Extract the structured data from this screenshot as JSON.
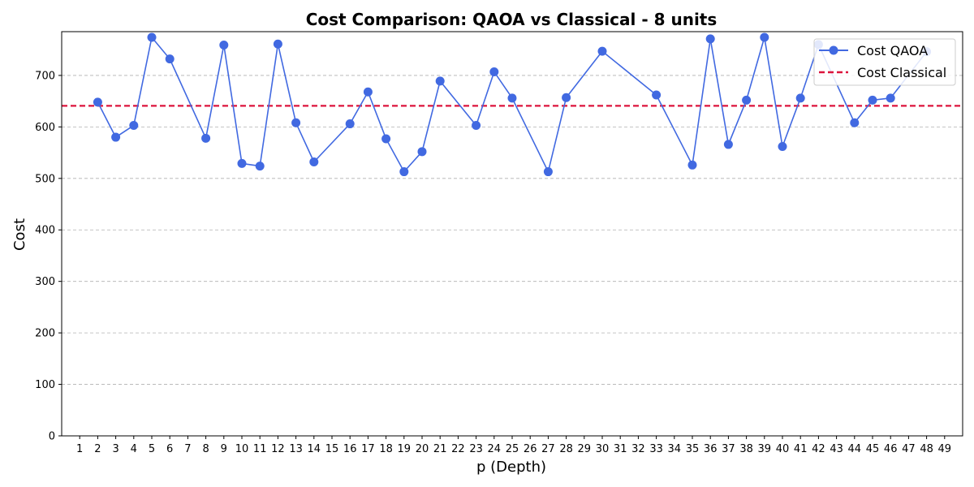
{
  "chart_data": {
    "type": "line",
    "title": "Cost Comparison: QAOA vs Classical - 8 units",
    "xlabel": "p (Depth)",
    "ylabel": "Cost",
    "xlim": [
      0,
      50
    ],
    "ylim": [
      0,
      785
    ],
    "x_ticks": [
      1,
      2,
      3,
      4,
      5,
      6,
      7,
      8,
      9,
      10,
      11,
      12,
      13,
      14,
      15,
      16,
      17,
      18,
      19,
      20,
      21,
      22,
      23,
      24,
      25,
      26,
      27,
      28,
      29,
      30,
      31,
      32,
      33,
      34,
      35,
      36,
      37,
      38,
      39,
      40,
      41,
      42,
      43,
      44,
      45,
      46,
      47,
      48,
      49
    ],
    "y_ticks": [
      0,
      100,
      200,
      300,
      400,
      500,
      600,
      700
    ],
    "grid": "y-dashed",
    "legend_position": "top-right",
    "series": [
      {
        "name": "Cost QAOA",
        "style": "line-markers",
        "color": "#4169e1",
        "x": [
          2,
          3,
          4,
          5,
          6,
          8,
          9,
          10,
          11,
          12,
          13,
          14,
          16,
          17,
          18,
          19,
          20,
          21,
          23,
          24,
          25,
          27,
          28,
          30,
          33,
          35,
          36,
          37,
          38,
          39,
          40,
          41,
          42,
          44,
          45,
          46,
          48
        ],
        "y": [
          648,
          580,
          603,
          774,
          732,
          578,
          759,
          529,
          524,
          761,
          608,
          532,
          606,
          668,
          577,
          513,
          552,
          689,
          603,
          707,
          656,
          513,
          657,
          747,
          662,
          526,
          771,
          566,
          652,
          774,
          562,
          656,
          760,
          608,
          652,
          656,
          746
        ]
      },
      {
        "name": "Cost Classical",
        "style": "dashed-hline",
        "color": "#dc143c",
        "y": 641
      }
    ]
  }
}
